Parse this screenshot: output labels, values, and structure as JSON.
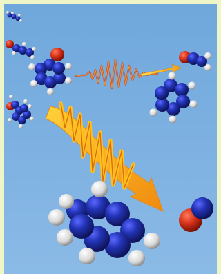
{
  "figure": {
    "description": "",
    "colors": {
      "frame": "#eef6c8",
      "background_top": "#6fa7dc",
      "background_bottom": "#8bbae6",
      "carbon": "#1f2b9a",
      "hydrogen": "#f2f2f2",
      "oxygen": "#d8321a",
      "arrow_orange": "#f29a12",
      "arrow_yellow": "#ffd23a",
      "pulse": "#c74a27"
    },
    "icons": [
      "molecule-icon",
      "pulse-icon",
      "arrow-icon"
    ]
  }
}
